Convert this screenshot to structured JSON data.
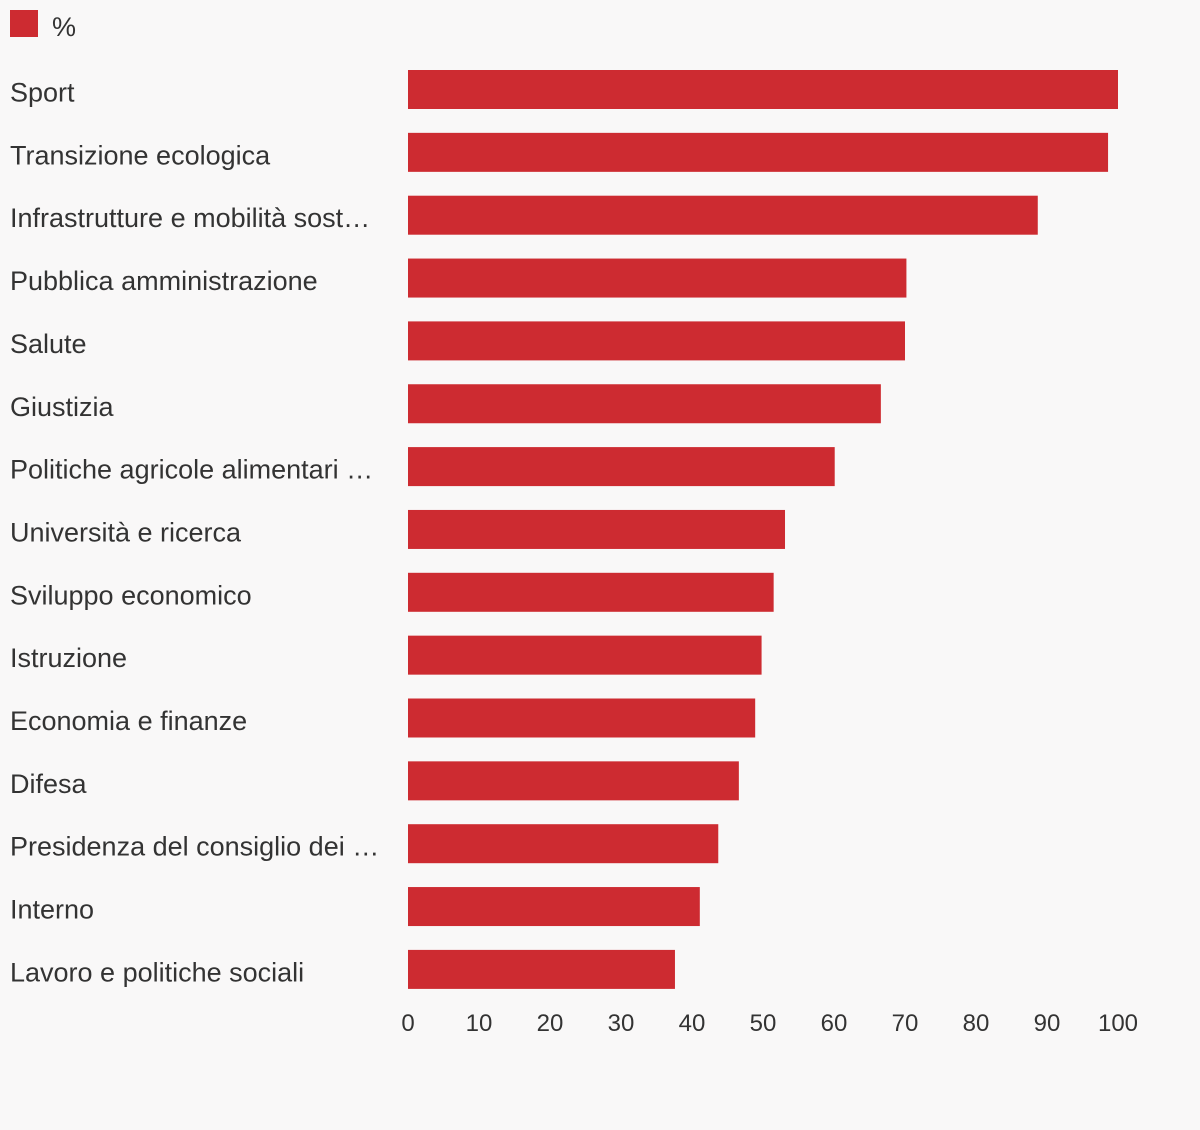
{
  "chart_data": {
    "type": "bar",
    "orientation": "horizontal",
    "series": [
      {
        "name": "%",
        "color": "#cd2b31",
        "values": [
          100,
          98.6,
          88.7,
          70.2,
          70.0,
          66.6,
          60.1,
          53.1,
          51.5,
          49.8,
          48.9,
          46.6,
          43.7,
          41.1,
          37.6
        ]
      }
    ],
    "categories": [
      "Sport",
      "Transizione ecologica",
      "Infrastrutture e mobilità sost…",
      "Pubblica amministrazione",
      "Salute",
      "Giustizia",
      "Politiche agricole alimentari …",
      "Università e ricerca",
      "Sviluppo economico",
      "Istruzione",
      "Economia e finanze",
      "Difesa",
      "Presidenza del consiglio dei …",
      "Interno",
      "Lavoro e politiche sociali"
    ],
    "x_ticks": [
      "0",
      "10",
      "20",
      "30",
      "40",
      "50",
      "60",
      "70",
      "80",
      "90",
      "100"
    ],
    "xlim": [
      0,
      100
    ],
    "legend_position": "top-left",
    "grid": false,
    "background_color": "#f9f8f8",
    "text_color": "#333333"
  }
}
